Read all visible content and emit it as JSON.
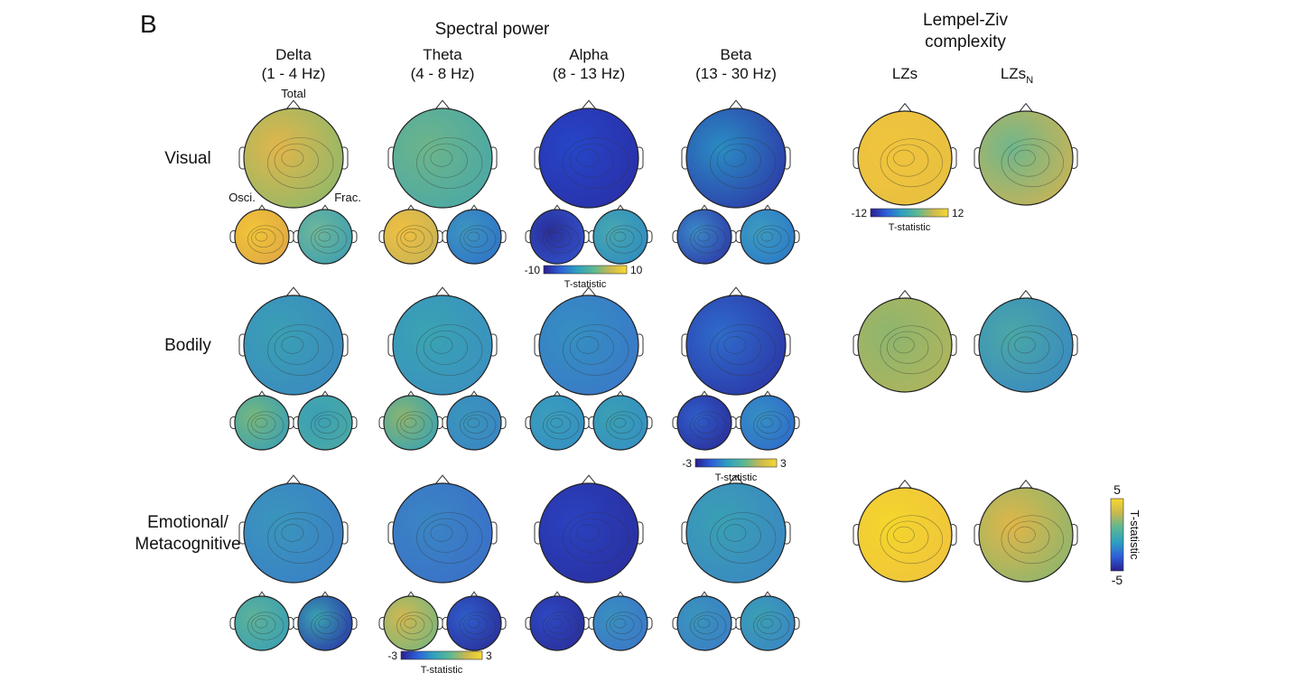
{
  "panel_label": "B",
  "spectral_title": "Spectral power",
  "lz_title": [
    "Lempel-Ziv",
    "complexity"
  ],
  "columns": [
    {
      "name": "Delta",
      "range": "(1 - 4 Hz)"
    },
    {
      "name": "Theta",
      "range": "(4 - 8 Hz)"
    },
    {
      "name": "Alpha",
      "range": "(8 - 13 Hz)"
    },
    {
      "name": "Beta",
      "range": "(13 - 30 Hz)"
    }
  ],
  "lz_columns": [
    {
      "name": "LZs",
      "sub": ""
    },
    {
      "name": "LZs",
      "sub": "N"
    }
  ],
  "map_labels": {
    "total": "Total",
    "osci": "Osci.",
    "frac": "Frac."
  },
  "rows": [
    {
      "label": [
        "Visual"
      ],
      "maps": [
        {
          "total": [
            "#e2b64a",
            "#8fb86a"
          ],
          "osci": [
            "#f2c637",
            "#e0a845"
          ],
          "frac": [
            "#6fb89a",
            "#3f9fb0"
          ]
        },
        {
          "total": [
            "#6db58a",
            "#4aa8a6"
          ],
          "osci": [
            "#f0c040",
            "#c9b455"
          ],
          "frac": [
            "#3d96c0",
            "#2f74c8"
          ]
        },
        {
          "total": [
            "#2646c8",
            "#2a2fa8"
          ],
          "osci": [
            "#2a2f9a",
            "#3150c8"
          ],
          "frac": [
            "#47a8b0",
            "#2f8cc0"
          ]
        },
        {
          "total": [
            "#2a8ec4",
            "#2d3aa8"
          ],
          "osci": [
            "#3a8ac8",
            "#2d3aa8"
          ],
          "frac": [
            "#3c9cc0",
            "#2c7ac8"
          ]
        }
      ],
      "lz": [
        [
          "#f0c43c",
          "#e8c040"
        ],
        [
          "#6fb68c",
          "#c9b455"
        ]
      ]
    },
    {
      "label": [
        "Bodily"
      ],
      "maps": [
        {
          "total": [
            "#3aa0b4",
            "#3a8ac0"
          ],
          "osci": [
            "#78b87c",
            "#3aa0b4"
          ],
          "frac": [
            "#3aa0b4",
            "#4aa8a6"
          ]
        },
        {
          "total": [
            "#3aa4b2",
            "#3a90c0"
          ],
          "osci": [
            "#8db56e",
            "#3aa4b2"
          ],
          "frac": [
            "#3a96bc",
            "#3a86c4"
          ]
        },
        {
          "total": [
            "#3590c2",
            "#3a78c8"
          ],
          "osci": [
            "#3a9ebc",
            "#3590c2"
          ],
          "frac": [
            "#3aa0b4",
            "#3590c2"
          ]
        },
        {
          "total": [
            "#2f6ccc",
            "#2b36a6"
          ],
          "osci": [
            "#2f5ecc",
            "#2a2f9a"
          ],
          "frac": [
            "#3590c2",
            "#2f6ccc"
          ]
        }
      ],
      "lz": [
        [
          "#8db56e",
          "#b0b55c"
        ],
        [
          "#4aa8a6",
          "#3a8ac0"
        ]
      ]
    },
    {
      "label": [
        "Emotional/",
        "Metacognitive"
      ],
      "maps": [
        {
          "total": [
            "#3a96bc",
            "#3a80c6"
          ],
          "osci": [
            "#5eb298",
            "#3aa0b4"
          ],
          "frac": [
            "#3aa4b2",
            "#2a3aa8"
          ]
        },
        {
          "total": [
            "#3a86c4",
            "#3a70c8"
          ],
          "osci": [
            "#d2b850",
            "#7ab67c"
          ],
          "frac": [
            "#2f5ecc",
            "#2a2f9a"
          ]
        },
        {
          "total": [
            "#2a42c0",
            "#2a2fa0"
          ],
          "osci": [
            "#2e48c4",
            "#2a2f9a"
          ],
          "frac": [
            "#3a90c0",
            "#3a78c8"
          ]
        },
        {
          "total": [
            "#3aa0b4",
            "#3a88c2"
          ],
          "osci": [
            "#3a96bc",
            "#3a7ec6"
          ],
          "frac": [
            "#3aa0b4",
            "#3a86c4"
          ]
        }
      ],
      "lz": [
        [
          "#f4d62c",
          "#f0c43c"
        ],
        [
          "#e0b648",
          "#8db56e"
        ]
      ]
    }
  ],
  "colorbars": [
    {
      "id": "alpha-visual",
      "min": "-10",
      "max": "10",
      "label": "T-statistic"
    },
    {
      "id": "beta-bodily",
      "min": "-3",
      "max": "3",
      "label": "T-statistic"
    },
    {
      "id": "theta-emotional",
      "min": "-3",
      "max": "3",
      "label": "T-statistic"
    },
    {
      "id": "lz-visual",
      "min": "-12",
      "max": "12",
      "label": "T-statistic"
    },
    {
      "id": "lz-right",
      "min": "-5",
      "max": "5",
      "label": "T-statistic"
    }
  ],
  "colormap": [
    "#2a1f8f",
    "#2d5fd8",
    "#2ea0c0",
    "#5ab893",
    "#c8b850",
    "#f7d830"
  ]
}
